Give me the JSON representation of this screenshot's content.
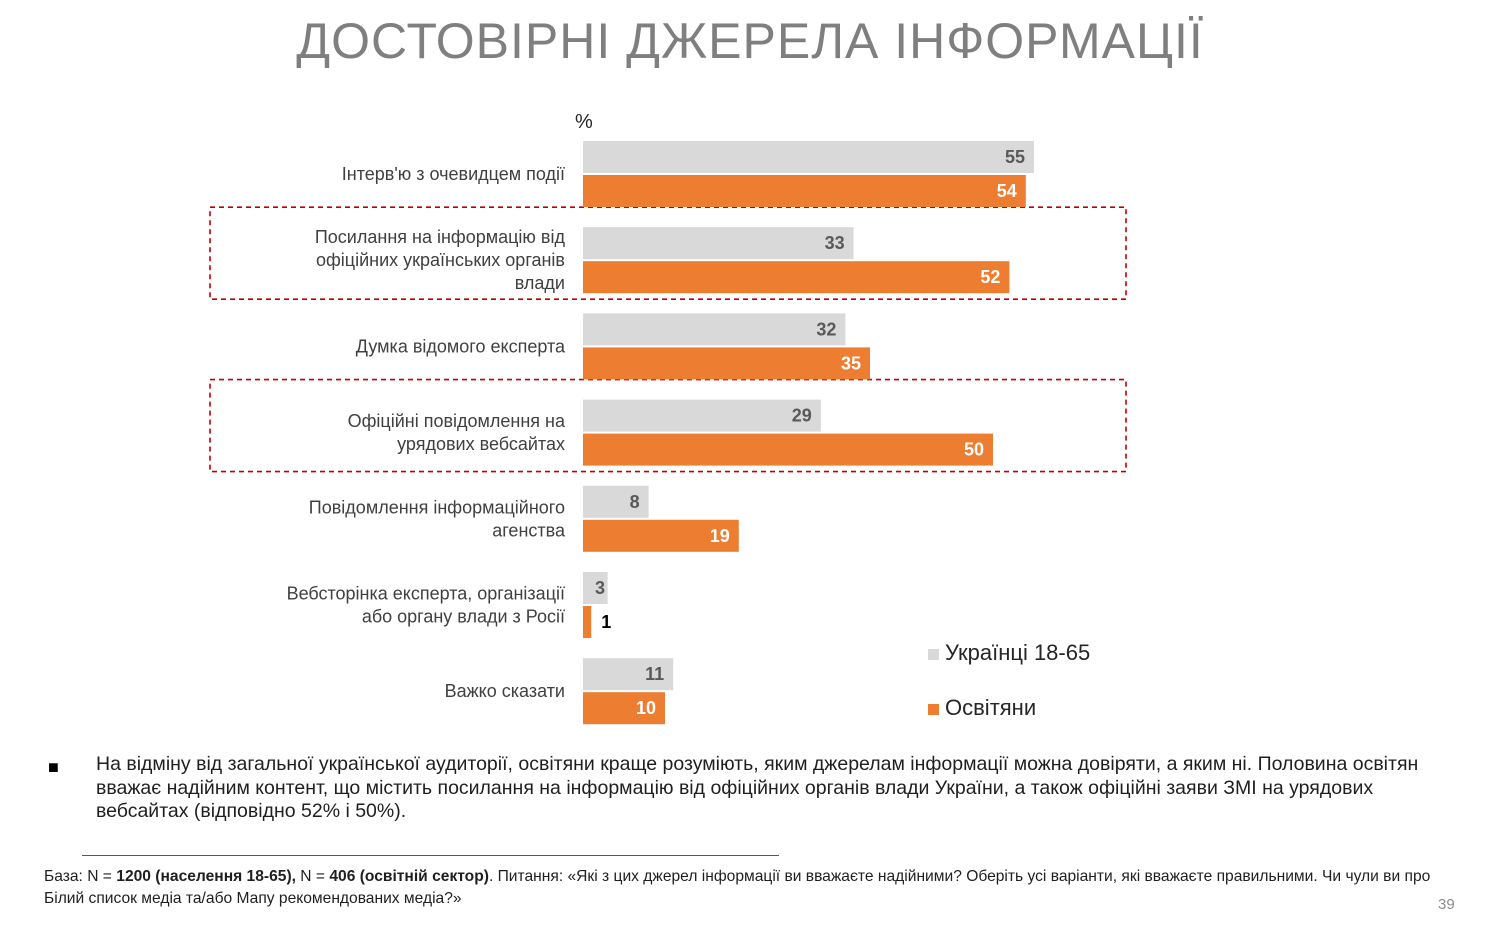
{
  "slide": {
    "title": "ДОСТОВІРНІ ДЖЕРЕЛА ІНФОРМАЦІЇ",
    "page_number": "39"
  },
  "chart_data": {
    "type": "bar",
    "orientation": "horizontal",
    "unit_label": "%",
    "categories": [
      [
        "Інтерв'ю з очевидцем події"
      ],
      [
        "Посилання на інформацію від",
        "офіційних українських органів",
        "влади"
      ],
      [
        "Думка відомого експерта"
      ],
      [
        "Офіційні повідомлення на",
        "урядових вебсайтах"
      ],
      [
        "Повідомлення інформаційного",
        "агенства"
      ],
      [
        "Вебсторінка експерта, організації",
        "або органу влади з Росії"
      ],
      [
        "Важко сказати"
      ]
    ],
    "series": [
      {
        "name": "Українці 18-65",
        "color": "#d9d9d9",
        "label_color": "#595959",
        "values": [
          55,
          33,
          32,
          29,
          8,
          3,
          11
        ]
      },
      {
        "name": "Освітяни",
        "color": "#ed7d31",
        "label_color": "#ffffff",
        "values": [
          54,
          52,
          35,
          50,
          19,
          1,
          10
        ]
      }
    ],
    "highlighted_categories": [
      1,
      3
    ],
    "highlight_color": "#c00000",
    "xlim": [
      0,
      55
    ],
    "grid": false,
    "legend_position": "bottom-right"
  },
  "legend": [
    {
      "label": "Українці 18-65",
      "color": "#d9d9d9"
    },
    {
      "label": "Освітяни",
      "color": "#ed7d31"
    }
  ],
  "bullet": {
    "marker": "■",
    "text": "На відміну від загальної української аудиторії, освітяни краще розуміють, яким джерелам інформації можна довіряти, а яким ні. Половина освітян вважає надійним контент, що містить посилання на інформацію від офіційних органів влади України, а також офіційні заяви ЗМІ на урядових вебсайтах (відповідно 52% і 50%)."
  },
  "footnote": {
    "base_prefix": "База: N = ",
    "base_pop": "1200 (населення 18-65),",
    "mid": " N = ",
    "base_edu": "406 (освітній сектор)",
    "question": ". Питання: «Які з цих джерел інформації ви вважаєте надійними? Оберіть усі варіанти, які вважаєте правильними. Чи чули ви про Білий список медіа та/або Мапу рекомендованих медіа?»"
  }
}
